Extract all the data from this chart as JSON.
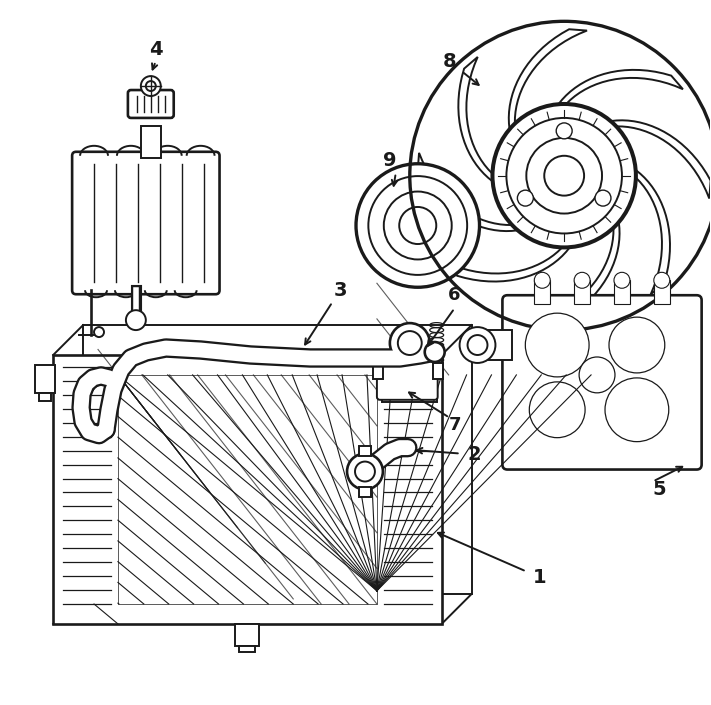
{
  "bg_color": "#ffffff",
  "line_color": "#1a1a1a",
  "lw": 1.4,
  "figsize": [
    7.11,
    7.05
  ],
  "dpi": 100,
  "xlim": [
    0,
    711
  ],
  "ylim": [
    0,
    705
  ]
}
